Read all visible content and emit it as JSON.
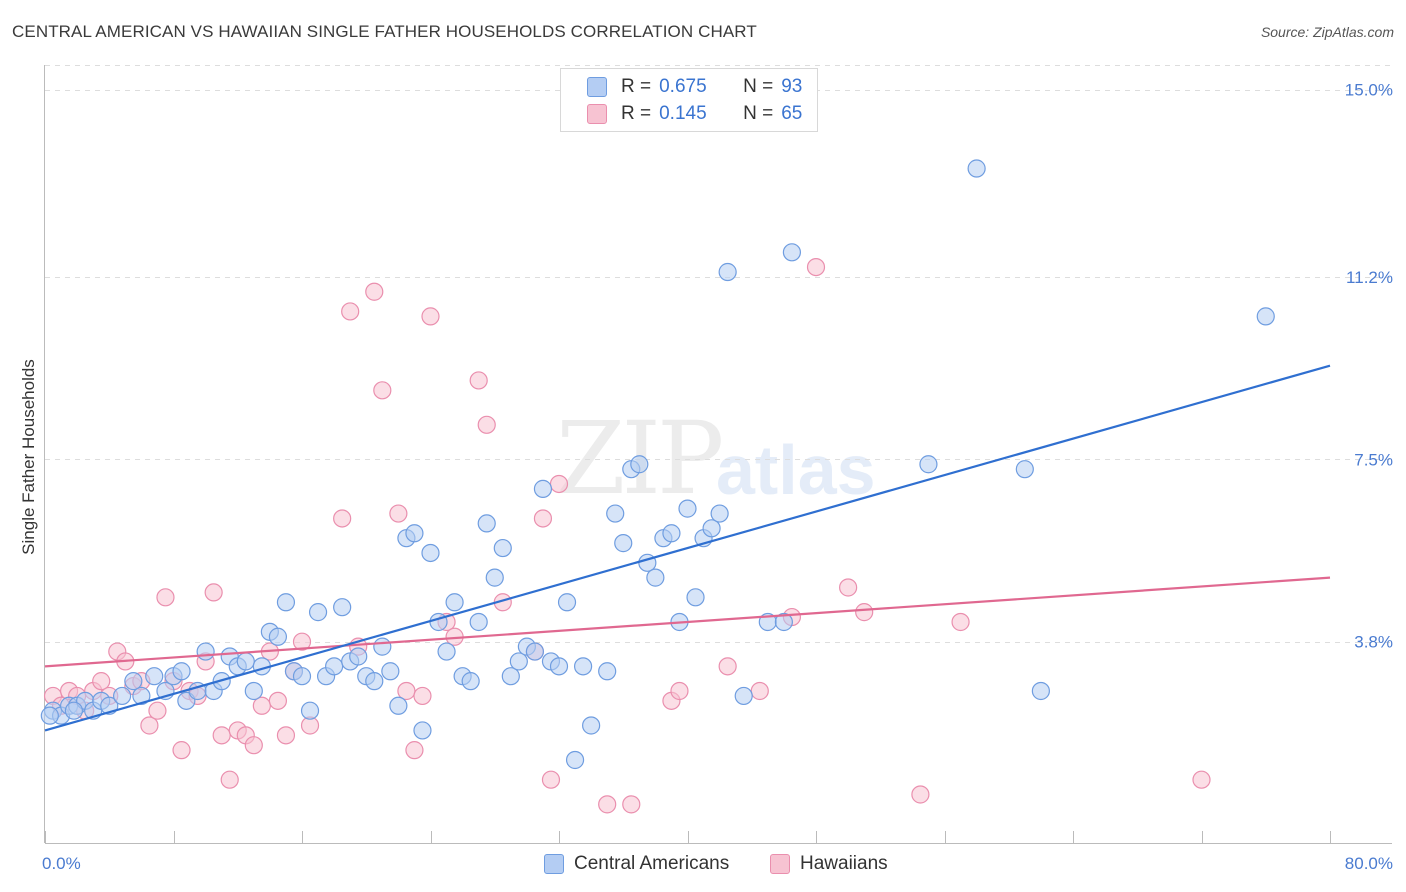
{
  "title": "CENTRAL AMERICAN VS HAWAIIAN SINGLE FATHER HOUSEHOLDS CORRELATION CHART",
  "source": "Source: ZipAtlas.com",
  "watermark": {
    "zip": "ZIP",
    "atlas": "atlas"
  },
  "legend": {
    "r_label": "R =",
    "n_label": "N =",
    "central": {
      "r": "0.675",
      "n": "93"
    },
    "hawaiian": {
      "r": "0.145",
      "n": "65"
    }
  },
  "bottom_legend": {
    "central": "Central Americans",
    "hawaiian": "Hawaiians"
  },
  "colors": {
    "blue_fill": "#b4cdf3",
    "blue_stroke": "#6f9de0",
    "blue_line": "#2f6fd0",
    "pink_fill": "#f7c3d2",
    "pink_stroke": "#ea8fae",
    "pink_line": "#e06890",
    "tick_text": "#4a7bd0",
    "grid": "#dddddd"
  },
  "chart_data": {
    "type": "scatter",
    "title": "CENTRAL AMERICAN VS HAWAIIAN SINGLE FATHER HOUSEHOLDS CORRELATION CHART",
    "xlabel": "",
    "ylabel": "Single Father Households",
    "xlim": [
      0,
      80
    ],
    "ylim": [
      0,
      15.5
    ],
    "y_ticks": [
      3.8,
      7.5,
      11.2,
      15.0
    ],
    "y_tick_labels": [
      "3.8%",
      "7.5%",
      "11.2%",
      "15.0%"
    ],
    "x_tick_labels": [
      "0.0%",
      "80.0%"
    ],
    "grid": "horizontal dashed",
    "legend_position": "top-center",
    "series": [
      {
        "name": "Central Americans",
        "trend": [
          [
            0,
            2.0
          ],
          [
            80,
            9.4
          ]
        ],
        "points": [
          [
            0.5,
            2.4
          ],
          [
            1.0,
            2.3
          ],
          [
            1.5,
            2.5
          ],
          [
            2.0,
            2.5
          ],
          [
            2.5,
            2.6
          ],
          [
            3.0,
            2.4
          ],
          [
            3.5,
            2.6
          ],
          [
            4.0,
            2.5
          ],
          [
            4.8,
            2.7
          ],
          [
            5.5,
            3.0
          ],
          [
            6.0,
            2.7
          ],
          [
            6.8,
            3.1
          ],
          [
            7.5,
            2.8
          ],
          [
            8.0,
            3.1
          ],
          [
            8.5,
            3.2
          ],
          [
            8.8,
            2.6
          ],
          [
            9.5,
            2.8
          ],
          [
            10.0,
            3.6
          ],
          [
            10.5,
            2.8
          ],
          [
            11.0,
            3.0
          ],
          [
            11.5,
            3.5
          ],
          [
            12.0,
            3.3
          ],
          [
            12.5,
            3.4
          ],
          [
            13.0,
            2.8
          ],
          [
            13.5,
            3.3
          ],
          [
            14.0,
            4.0
          ],
          [
            14.5,
            3.9
          ],
          [
            15.0,
            4.6
          ],
          [
            15.5,
            3.2
          ],
          [
            16.0,
            3.1
          ],
          [
            16.5,
            2.4
          ],
          [
            17.0,
            4.4
          ],
          [
            17.5,
            3.1
          ],
          [
            18.0,
            3.3
          ],
          [
            18.5,
            4.5
          ],
          [
            19.0,
            3.4
          ],
          [
            19.5,
            3.5
          ],
          [
            20.0,
            3.1
          ],
          [
            20.5,
            3.0
          ],
          [
            21.0,
            3.7
          ],
          [
            21.5,
            3.2
          ],
          [
            22.0,
            2.5
          ],
          [
            22.5,
            5.9
          ],
          [
            23.0,
            6.0
          ],
          [
            23.5,
            2.0
          ],
          [
            24.0,
            5.6
          ],
          [
            24.5,
            4.2
          ],
          [
            25.0,
            3.6
          ],
          [
            25.5,
            4.6
          ],
          [
            26.0,
            3.1
          ],
          [
            26.5,
            3.0
          ],
          [
            27.0,
            4.2
          ],
          [
            27.5,
            6.2
          ],
          [
            28.0,
            5.1
          ],
          [
            28.5,
            5.7
          ],
          [
            29.0,
            3.1
          ],
          [
            29.5,
            3.4
          ],
          [
            30.0,
            3.7
          ],
          [
            30.5,
            3.6
          ],
          [
            31.0,
            6.9
          ],
          [
            31.5,
            3.4
          ],
          [
            32.0,
            3.3
          ],
          [
            32.5,
            4.6
          ],
          [
            33.0,
            1.4
          ],
          [
            33.5,
            3.3
          ],
          [
            34.0,
            2.1
          ],
          [
            35.0,
            3.2
          ],
          [
            35.5,
            6.4
          ],
          [
            36.0,
            5.8
          ],
          [
            36.5,
            7.3
          ],
          [
            37.0,
            7.4
          ],
          [
            37.5,
            5.4
          ],
          [
            38.0,
            5.1
          ],
          [
            38.5,
            5.9
          ],
          [
            39.0,
            6.0
          ],
          [
            39.5,
            4.2
          ],
          [
            40.0,
            6.5
          ],
          [
            40.5,
            4.7
          ],
          [
            41.0,
            5.9
          ],
          [
            41.5,
            6.1
          ],
          [
            42.0,
            6.4
          ],
          [
            42.5,
            11.3
          ],
          [
            43.5,
            2.7
          ],
          [
            45.0,
            4.2
          ],
          [
            46.0,
            4.2
          ],
          [
            46.5,
            11.7
          ],
          [
            55.0,
            7.4
          ],
          [
            58.0,
            13.4
          ],
          [
            61.0,
            7.3
          ],
          [
            62.0,
            2.8
          ],
          [
            0.3,
            2.3
          ],
          [
            1.8,
            2.4
          ],
          [
            76.0,
            10.4
          ]
        ]
      },
      {
        "name": "Hawaiians",
        "trend": [
          [
            0,
            3.3
          ],
          [
            80,
            5.1
          ]
        ],
        "points": [
          [
            0.5,
            2.7
          ],
          [
            1.0,
            2.5
          ],
          [
            1.5,
            2.8
          ],
          [
            2.0,
            2.7
          ],
          [
            2.5,
            2.4
          ],
          [
            3.0,
            2.8
          ],
          [
            3.5,
            3.0
          ],
          [
            4.0,
            2.7
          ],
          [
            4.5,
            3.6
          ],
          [
            5.0,
            3.4
          ],
          [
            5.5,
            2.9
          ],
          [
            6.0,
            3.0
          ],
          [
            6.5,
            2.1
          ],
          [
            7.0,
            2.4
          ],
          [
            7.5,
            4.7
          ],
          [
            8.0,
            3.0
          ],
          [
            8.5,
            1.6
          ],
          [
            9.0,
            2.8
          ],
          [
            9.5,
            2.7
          ],
          [
            10.0,
            3.4
          ],
          [
            10.5,
            4.8
          ],
          [
            11.0,
            1.9
          ],
          [
            11.5,
            1.0
          ],
          [
            12.0,
            2.0
          ],
          [
            12.5,
            1.9
          ],
          [
            13.0,
            1.7
          ],
          [
            13.5,
            2.5
          ],
          [
            14.0,
            3.6
          ],
          [
            14.5,
            2.6
          ],
          [
            15.0,
            1.9
          ],
          [
            15.5,
            3.2
          ],
          [
            16.0,
            3.8
          ],
          [
            16.5,
            2.1
          ],
          [
            18.5,
            6.3
          ],
          [
            19.0,
            10.5
          ],
          [
            19.5,
            3.7
          ],
          [
            20.5,
            10.9
          ],
          [
            21.0,
            8.9
          ],
          [
            22.0,
            6.4
          ],
          [
            22.5,
            2.8
          ],
          [
            23.0,
            1.6
          ],
          [
            23.5,
            2.7
          ],
          [
            24.0,
            10.4
          ],
          [
            25.0,
            4.2
          ],
          [
            25.5,
            3.9
          ],
          [
            27.0,
            9.1
          ],
          [
            27.5,
            8.2
          ],
          [
            28.5,
            4.6
          ],
          [
            30.5,
            3.6
          ],
          [
            31.0,
            6.3
          ],
          [
            31.5,
            1.0
          ],
          [
            32.0,
            7.0
          ],
          [
            35.0,
            0.5
          ],
          [
            36.5,
            0.5
          ],
          [
            39.0,
            2.6
          ],
          [
            39.5,
            2.8
          ],
          [
            42.5,
            3.3
          ],
          [
            44.5,
            2.8
          ],
          [
            46.5,
            4.3
          ],
          [
            48.0,
            11.4
          ],
          [
            50.0,
            4.9
          ],
          [
            51.0,
            4.4
          ],
          [
            54.5,
            0.7
          ],
          [
            57.0,
            4.2
          ],
          [
            72.0,
            1.0
          ]
        ]
      }
    ]
  }
}
